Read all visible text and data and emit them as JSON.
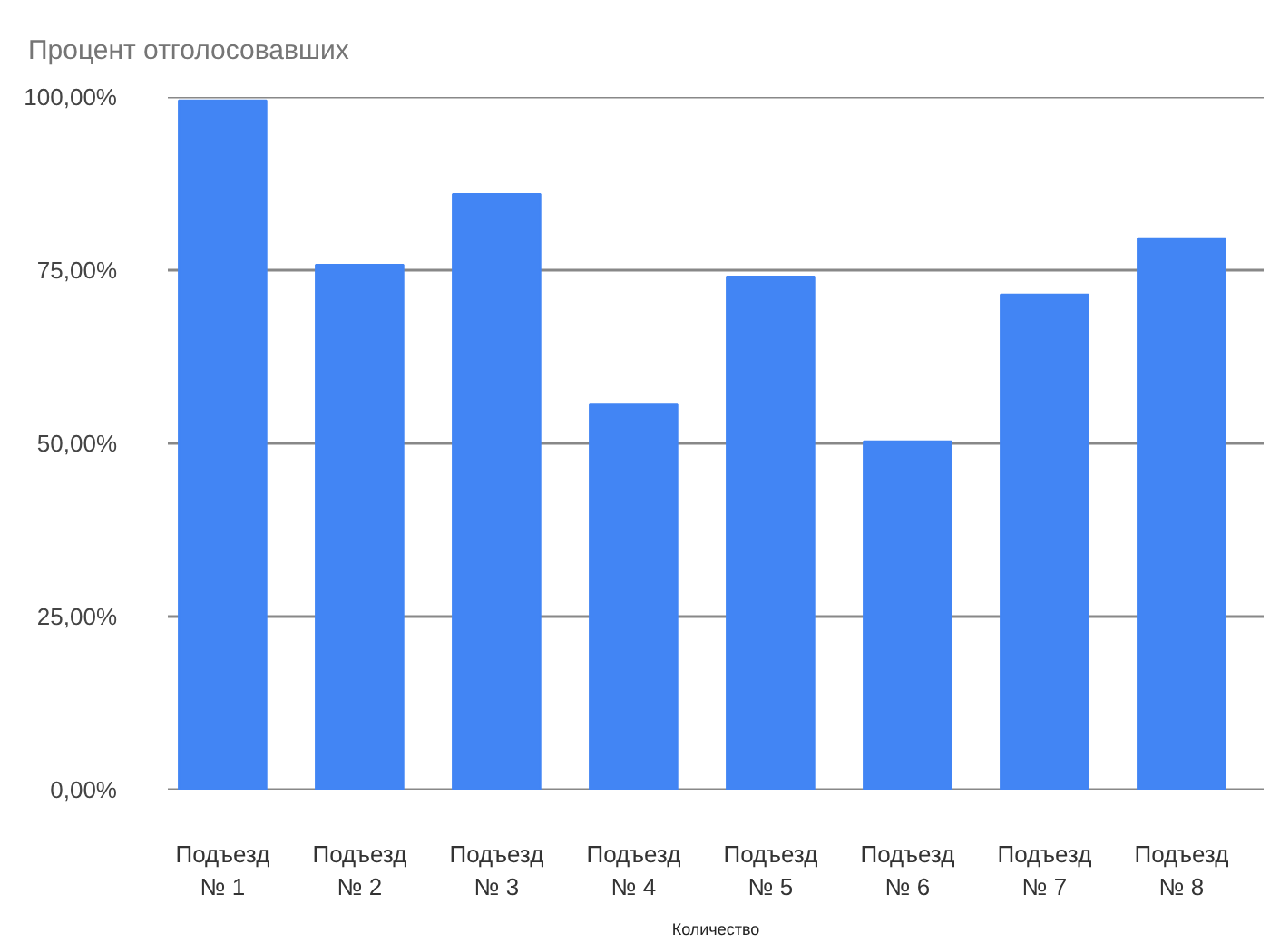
{
  "chart_data": {
    "type": "bar",
    "title": "Процент отголосовавших",
    "xlabel": "Количество",
    "categories": [
      "Подъезд № 1",
      "Подъезд № 2",
      "Подъезд № 3",
      "Подъезд № 4",
      "Подъезд № 5",
      "Подъезд № 6",
      "Подъезд № 7",
      "Подъезд № 8"
    ],
    "values": [
      99.5,
      75.8,
      86.0,
      55.6,
      74.1,
      50.3,
      71.5,
      79.6
    ],
    "color": "#4285f4",
    "ylim": [
      0,
      100
    ],
    "yticks": [
      {
        "value": 0,
        "label": "0,00%"
      },
      {
        "value": 25,
        "label": "25,00%"
      },
      {
        "value": 50,
        "label": "50,00%"
      },
      {
        "value": 75,
        "label": "75,00%"
      },
      {
        "value": 100,
        "label": "100,00%"
      }
    ],
    "grid": "y"
  }
}
